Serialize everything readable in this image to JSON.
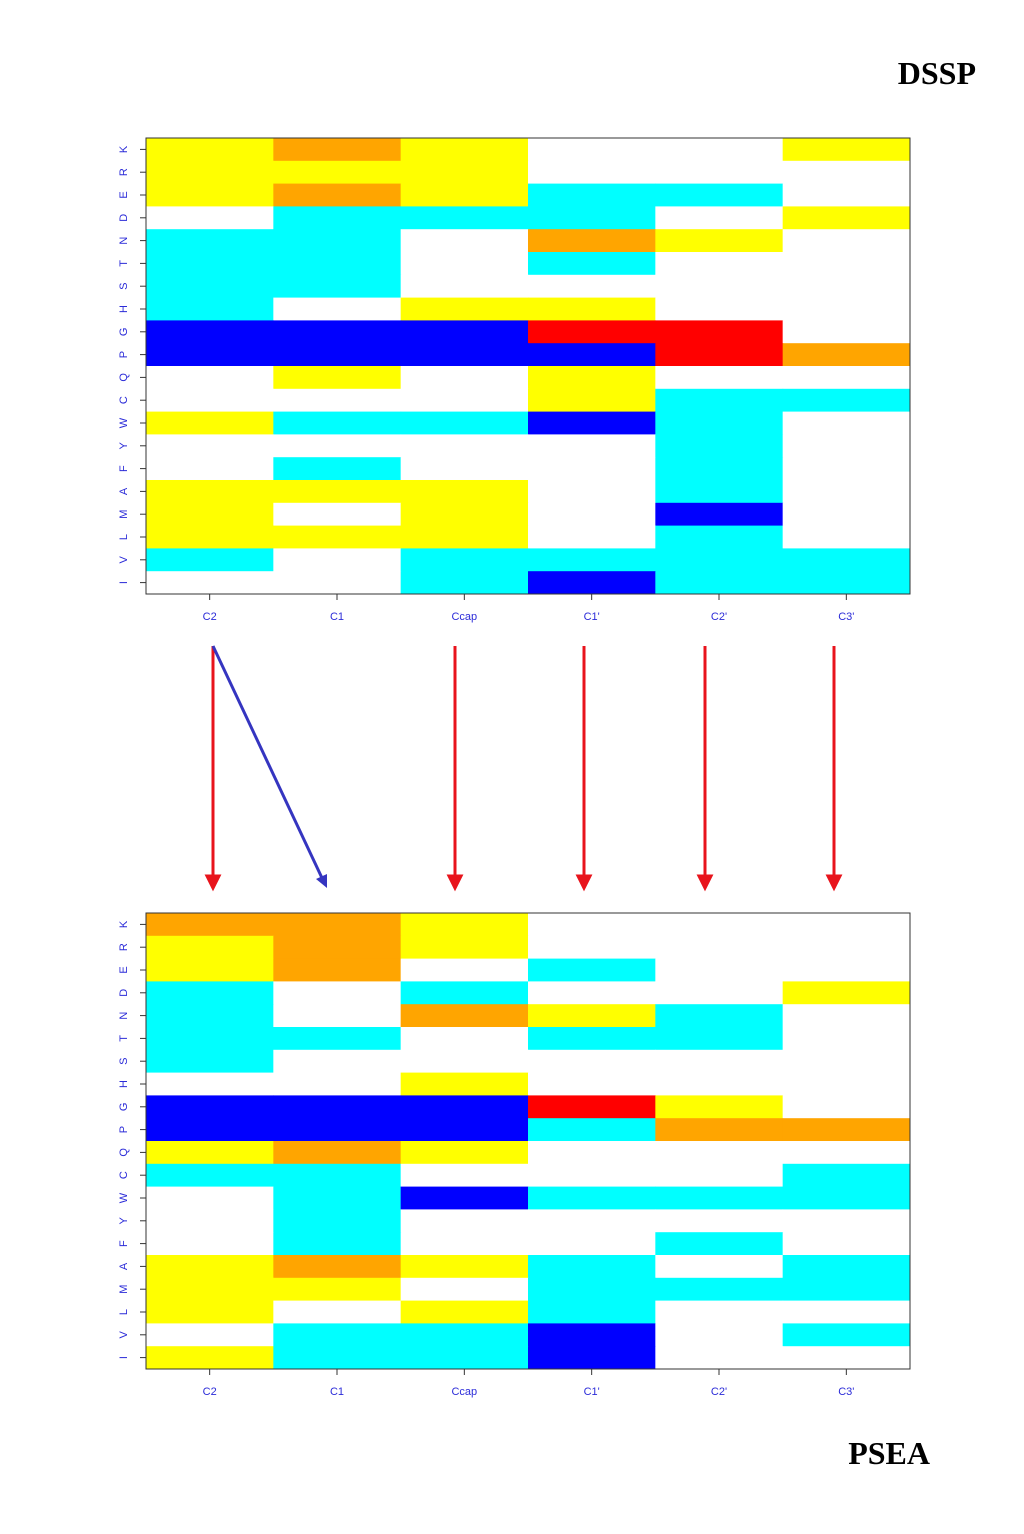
{
  "chart_data": [
    {
      "type": "heatmap",
      "title": "DSSP",
      "x": [
        "C2",
        "C1",
        "Ccap",
        "C1'",
        "C2'",
        "C3'"
      ],
      "y": [
        "K",
        "R",
        "E",
        "D",
        "N",
        "T",
        "S",
        "H",
        "G",
        "P",
        "Q",
        "C",
        "W",
        "Y",
        "F",
        "A",
        "M",
        "L",
        "V",
        "I"
      ],
      "colors": [
        [
          "yellow",
          "orange",
          "yellow",
          "white",
          "white",
          "yellow"
        ],
        [
          "yellow",
          "yellow",
          "yellow",
          "white",
          "white",
          "white"
        ],
        [
          "yellow",
          "orange",
          "yellow",
          "cyan",
          "cyan",
          "white"
        ],
        [
          "white",
          "cyan",
          "cyan",
          "cyan",
          "white",
          "yellow"
        ],
        [
          "cyan",
          "cyan",
          "white",
          "orange",
          "yellow",
          "white"
        ],
        [
          "cyan",
          "cyan",
          "white",
          "cyan",
          "white",
          "white"
        ],
        [
          "cyan",
          "cyan",
          "white",
          "white",
          "white",
          "white"
        ],
        [
          "cyan",
          "white",
          "yellow",
          "yellow",
          "white",
          "white"
        ],
        [
          "blue",
          "blue",
          "blue",
          "red",
          "red",
          "white"
        ],
        [
          "blue",
          "blue",
          "blue",
          "blue",
          "red",
          "orange"
        ],
        [
          "white",
          "yellow",
          "white",
          "yellow",
          "white",
          "white"
        ],
        [
          "white",
          "white",
          "white",
          "yellow",
          "cyan",
          "cyan"
        ],
        [
          "yellow",
          "cyan",
          "cyan",
          "blue",
          "cyan",
          "white"
        ],
        [
          "white",
          "white",
          "white",
          "white",
          "cyan",
          "white"
        ],
        [
          "white",
          "cyan",
          "white",
          "white",
          "cyan",
          "white"
        ],
        [
          "yellow",
          "yellow",
          "yellow",
          "white",
          "cyan",
          "white"
        ],
        [
          "yellow",
          "white",
          "yellow",
          "white",
          "blue",
          "white"
        ],
        [
          "yellow",
          "yellow",
          "yellow",
          "white",
          "cyan",
          "white"
        ],
        [
          "cyan",
          "white",
          "cyan",
          "cyan",
          "cyan",
          "cyan"
        ],
        [
          "white",
          "white",
          "cyan",
          "blue",
          "cyan",
          "cyan"
        ]
      ]
    },
    {
      "type": "heatmap",
      "title": "PSEA",
      "x": [
        "C2",
        "C1",
        "Ccap",
        "C1'",
        "C2'",
        "C3'"
      ],
      "y": [
        "K",
        "R",
        "E",
        "D",
        "N",
        "T",
        "S",
        "H",
        "G",
        "P",
        "Q",
        "C",
        "W",
        "Y",
        "F",
        "A",
        "M",
        "L",
        "V",
        "I"
      ],
      "colors": [
        [
          "orange",
          "orange",
          "yellow",
          "white",
          "white",
          "white"
        ],
        [
          "yellow",
          "orange",
          "yellow",
          "white",
          "white",
          "white"
        ],
        [
          "yellow",
          "orange",
          "white",
          "cyan",
          "white",
          "white"
        ],
        [
          "cyan",
          "white",
          "cyan",
          "white",
          "white",
          "yellow"
        ],
        [
          "cyan",
          "white",
          "orange",
          "yellow",
          "cyan",
          "white"
        ],
        [
          "cyan",
          "cyan",
          "white",
          "cyan",
          "cyan",
          "white"
        ],
        [
          "cyan",
          "white",
          "white",
          "white",
          "white",
          "white"
        ],
        [
          "white",
          "white",
          "yellow",
          "white",
          "white",
          "white"
        ],
        [
          "blue",
          "blue",
          "blue",
          "red",
          "yellow",
          "white"
        ],
        [
          "blue",
          "blue",
          "blue",
          "cyan",
          "orange",
          "orange"
        ],
        [
          "yellow",
          "orange",
          "yellow",
          "white",
          "white",
          "white"
        ],
        [
          "cyan",
          "cyan",
          "white",
          "white",
          "white",
          "cyan"
        ],
        [
          "white",
          "cyan",
          "blue",
          "cyan",
          "cyan",
          "cyan"
        ],
        [
          "white",
          "cyan",
          "white",
          "white",
          "white",
          "white"
        ],
        [
          "white",
          "cyan",
          "white",
          "white",
          "cyan",
          "white"
        ],
        [
          "yellow",
          "orange",
          "yellow",
          "cyan",
          "white",
          "cyan"
        ],
        [
          "yellow",
          "yellow",
          "white",
          "cyan",
          "cyan",
          "cyan"
        ],
        [
          "yellow",
          "white",
          "yellow",
          "cyan",
          "white",
          "white"
        ],
        [
          "white",
          "cyan",
          "cyan",
          "blue",
          "white",
          "cyan"
        ],
        [
          "yellow",
          "cyan",
          "cyan",
          "blue",
          "white",
          "white"
        ]
      ]
    }
  ]
}
